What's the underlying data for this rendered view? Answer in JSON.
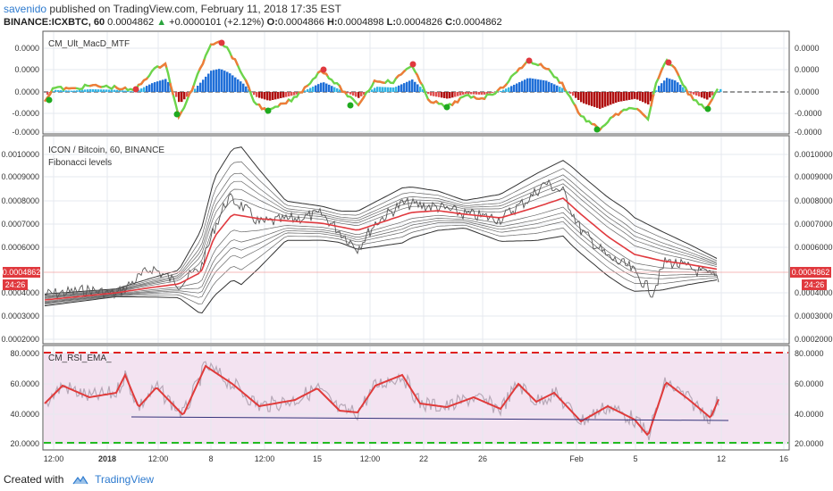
{
  "header": {
    "user": "savenido",
    "published_text": "published on TradingView.com, February 11, 2018 17:35 EST",
    "symbol": "BINANCE:ICXBTC, 60",
    "last": "0.0004862",
    "change": "+0.0000101 (+2.12%)",
    "o_label": "O:",
    "o_value": "0.0004866",
    "h_label": "H:",
    "h_value": "0.0004898",
    "l_label": "L:",
    "l_value": "0.0004826",
    "c_label": "C:",
    "c_value": "0.0004862",
    "up_arrow": "▲"
  },
  "macd_pane": {
    "title": "CM_Ult_MacD_MTF",
    "ticks": [
      "0.0000",
      "0.0000",
      "0.0000",
      "-0.0000",
      "-0.0000"
    ]
  },
  "price_pane": {
    "title": "ICON / Bitcoin, 60, BINANCE",
    "subtitle": "Fibonacci levels",
    "ticks": [
      "0.0010000",
      "0.0009000",
      "0.0008000",
      "0.0007000",
      "0.0006000",
      "0.0004000",
      "0.0003000",
      "0.0002000"
    ],
    "last_price_label": "0.0004862",
    "countdown": "24:26"
  },
  "rsi_pane": {
    "title": "CM_RSI_EMA_",
    "ticks": [
      "80.0000",
      "60.0000",
      "40.0000",
      "20.0000"
    ]
  },
  "time_axis": [
    "12:00",
    "2018",
    "12:00",
    "8",
    "12:00",
    "15",
    "12:00",
    "22",
    "26",
    "Feb",
    "5",
    "12",
    "16"
  ],
  "footer": {
    "created_with": "Created with",
    "brand": "TradingView"
  },
  "colors": {
    "grid": "#e6e9ef",
    "price_line_red": "#e0393e",
    "up": "#2aa43d",
    "brand": "#2e7bcf",
    "rsi_bg": "#f3e3f1",
    "rsi_band_red": "#e02020",
    "rsi_band_green": "#22bb22"
  }
}
